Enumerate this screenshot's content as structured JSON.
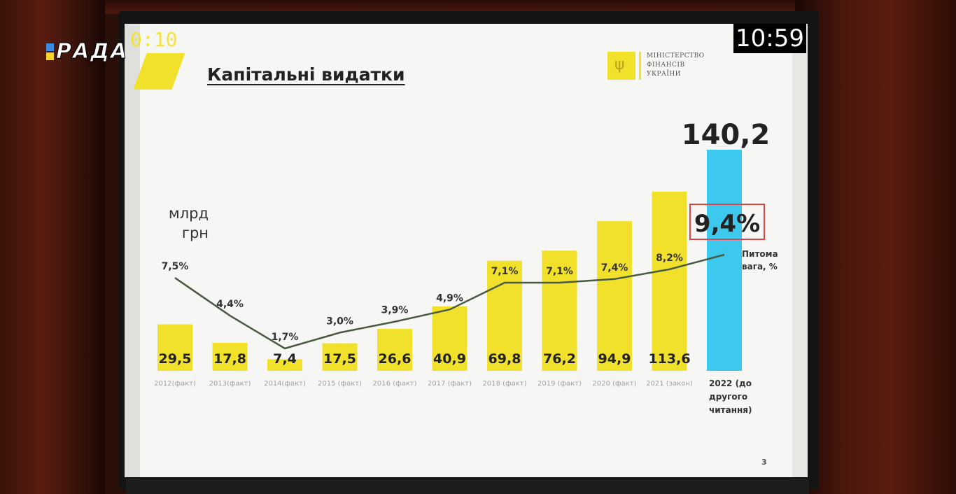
{
  "overlay": {
    "channel_logo": "РАДА",
    "timer_left": "0:10",
    "timer_right": "10:59"
  },
  "slide": {
    "title": "Капітальні видатки",
    "ministry_logo_lines": [
      "МІНІСТЕРСТВО",
      "ФІНАНСІВ",
      "УКРАЇНИ"
    ],
    "page_number": "3",
    "colors": {
      "bar_yellow": "#f2e12a",
      "bar_highlight": "#3dc8ee",
      "line": "#4a5a42",
      "highlight_box": "#d44"
    }
  },
  "chart_data": {
    "type": "bar",
    "title": "Капітальні видатки",
    "ylabel": "млрд грн",
    "categories": [
      "2012(факт)",
      "2013(факт)",
      "2014(факт)",
      "2015 (факт)",
      "2016 (факт)",
      "2017 (факт)",
      "2018 (факт)",
      "2019 (факт)",
      "2020 (факт)",
      "2021 (закон)",
      "2022 (до другого читання)"
    ],
    "series": [
      {
        "values": [
          29.5,
          17.8,
          7.4,
          17.5,
          26.6,
          40.9,
          69.8,
          76.2,
          94.9,
          113.6,
          140.2
        ],
        "labels": [
          "29,5",
          "17,8",
          "7,4",
          "17,5",
          "26,6",
          "40,9",
          "69,8",
          "76,2",
          "94,9",
          "113,6",
          "140,2"
        ]
      },
      {
        "name": "Питома вага, %",
        "values": [
          7.5,
          4.4,
          1.7,
          3.0,
          3.9,
          4.9,
          7.1,
          7.1,
          7.4,
          8.2,
          9.4
        ],
        "labels": [
          "7,5%",
          "4,4%",
          "1,7%",
          "3,0%",
          "3,9%",
          "4,9%",
          "7,1%",
          "7,1%",
          "7,4%",
          "8,2%",
          "9,4%"
        ]
      }
    ],
    "highlight_category": "2022 (до другого читання)"
  }
}
